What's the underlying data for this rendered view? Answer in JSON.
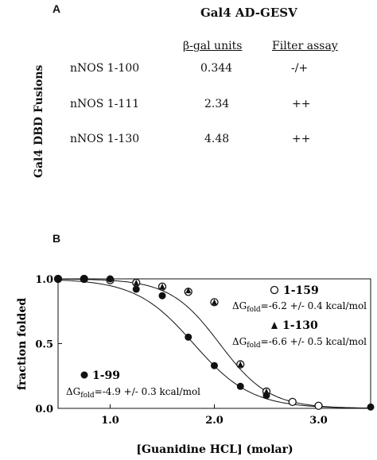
{
  "panel_a": {
    "letter": "A",
    "prey_header": "Gal4 AD-GESV",
    "bait_axis_label": "Gal4 DBD Fusions",
    "col_headers": [
      "β-gal units",
      "Filter assay"
    ],
    "rows": [
      {
        "name": "nNOS 1-100",
        "bgal": "0.344",
        "filter": "-/+"
      },
      {
        "name": "nNOS 1-111",
        "bgal": "2.34",
        "filter": "++"
      },
      {
        "name": "nNOS 1-130",
        "bgal": "4.48",
        "filter": "++"
      }
    ]
  },
  "panel_b": {
    "letter": "B"
  },
  "chart_data": {
    "type": "scatter",
    "title": "",
    "xlabel": "[Guanidine HCL] (molar)",
    "ylabel": "fraction folded",
    "xlim": [
      0.5,
      3.5
    ],
    "ylim": [
      0.0,
      1.0
    ],
    "xticks": [
      "1.0",
      "2.0",
      "3.0"
    ],
    "yticks": [
      "0.0",
      "0.5",
      "1.0"
    ],
    "series": [
      {
        "name": "1-159",
        "marker": "open-circle",
        "dG": "-6.2 +/- 0.4 kcal/mol",
        "x": [
          0.5,
          0.75,
          1.0,
          1.25,
          1.5,
          1.75,
          2.0,
          2.25,
          2.5,
          2.75,
          3.0
        ],
        "y": [
          1.0,
          1.0,
          0.99,
          0.97,
          0.94,
          0.9,
          0.82,
          0.34,
          0.13,
          0.05,
          0.02
        ],
        "fit": {
          "cm": 2.05,
          "m": 4.2
        }
      },
      {
        "name": "1-130",
        "marker": "filled-triangle",
        "dG": "-6.6 +/- 0.5 kcal/mol",
        "x": [
          1.25,
          1.5,
          1.75,
          2.0,
          2.25,
          2.5
        ],
        "y": [
          0.97,
          0.94,
          0.91,
          0.82,
          0.34,
          0.13
        ],
        "fit": null
      },
      {
        "name": "1-99",
        "marker": "filled-circle",
        "dG": "-4.9 +/- 0.3 kcal/mol",
        "x": [
          0.5,
          0.75,
          1.0,
          1.25,
          1.5,
          1.75,
          2.0,
          2.25,
          2.5,
          3.5
        ],
        "y": [
          1.0,
          1.0,
          1.0,
          0.92,
          0.87,
          0.55,
          0.33,
          0.17,
          0.1,
          0.01
        ],
        "fit": {
          "cm": 1.8,
          "m": 3.6
        }
      }
    ]
  }
}
